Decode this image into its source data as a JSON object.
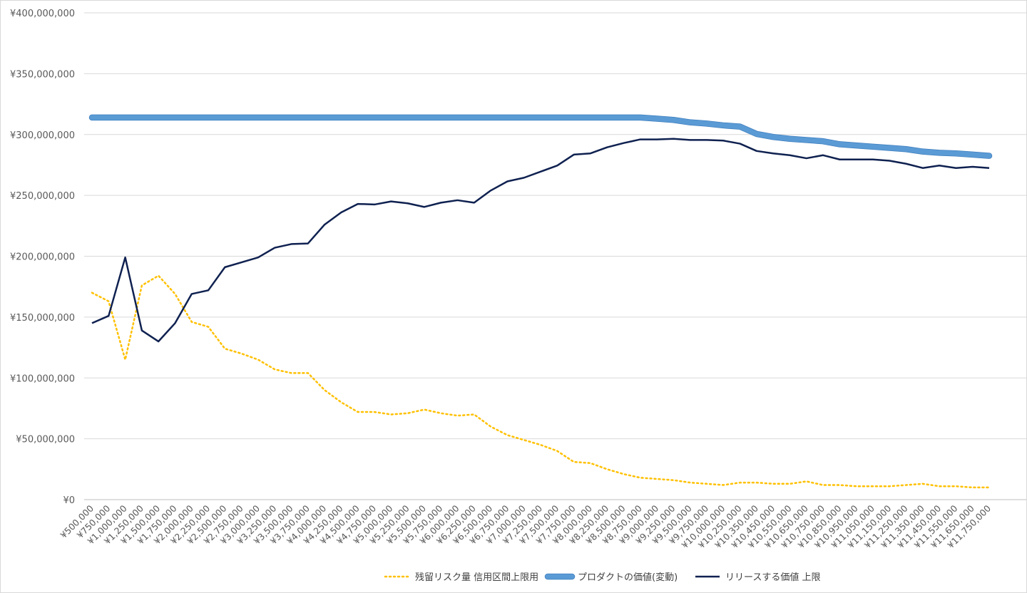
{
  "chart_data": {
    "type": "line",
    "title": "",
    "xlabel": "",
    "ylabel": "",
    "ylim": [
      0,
      400000000
    ],
    "yticks": [
      0,
      50000000,
      100000000,
      150000000,
      200000000,
      250000000,
      300000000,
      350000000,
      400000000
    ],
    "ytick_labels": [
      "¥0",
      "¥50,000,000",
      "¥100,000,000",
      "¥150,000,000",
      "¥200,000,000",
      "¥250,000,000",
      "¥300,000,000",
      "¥350,000,000",
      "¥400,000,000"
    ],
    "grid": true,
    "legend_position": "bottom",
    "categories": [
      "¥500,000",
      "¥750,000",
      "¥1,000,000",
      "¥1,250,000",
      "¥1,500,000",
      "¥1,750,000",
      "¥2,000,000",
      "¥2,250,000",
      "¥2,500,000",
      "¥2,750,000",
      "¥3,000,000",
      "¥3,250,000",
      "¥3,500,000",
      "¥3,750,000",
      "¥4,000,000",
      "¥4,250,000",
      "¥4,500,000",
      "¥4,750,000",
      "¥5,000,000",
      "¥5,250,000",
      "¥5,500,000",
      "¥5,750,000",
      "¥6,000,000",
      "¥6,250,000",
      "¥6,500,000",
      "¥6,750,000",
      "¥7,000,000",
      "¥7,250,000",
      "¥7,500,000",
      "¥7,750,000",
      "¥8,000,000",
      "¥8,250,000",
      "¥8,500,000",
      "¥8,750,000",
      "¥9,000,000",
      "¥9,250,000",
      "¥9,500,000",
      "¥9,750,000",
      "¥10,000,000",
      "¥10,250,000",
      "¥10,350,000",
      "¥10,450,000",
      "¥10,550,000",
      "¥10,650,000",
      "¥10,750,000",
      "¥10,850,000",
      "¥10,950,000",
      "¥11,050,000",
      "¥11,150,000",
      "¥11,250,000",
      "¥11,350,000",
      "¥11,450,000",
      "¥11,550,000",
      "¥11,650,000",
      "¥11,750,000"
    ],
    "series": [
      {
        "name": "残留リスク量 信用区間上限用",
        "color": "#ffc000",
        "style": "dotted",
        "values": [
          170000000,
          163000000,
          115000000,
          176000000,
          184000000,
          169000000,
          146000000,
          142000000,
          124000000,
          120000000,
          115000000,
          107000000,
          104000000,
          104000000,
          90000000,
          80000000,
          72000000,
          72000000,
          70000000,
          71000000,
          74000000,
          71000000,
          69000000,
          70000000,
          60000000,
          53000000,
          49000000,
          45000000,
          40000000,
          31000000,
          30000000,
          25000000,
          21000000,
          18000000,
          17000000,
          16000000,
          14000000,
          13000000,
          12000000,
          14000000,
          14000000,
          13000000,
          13000000,
          15000000,
          12000000,
          12000000,
          11000000,
          11000000,
          11000000,
          12000000,
          13000000,
          11000000,
          11000000,
          10000000,
          10000000
        ]
      },
      {
        "name": "プロダクトの価値(変動)",
        "color": "#5b9bd5",
        "style": "thick",
        "values": [
          314000000,
          314000000,
          314000000,
          314000000,
          314000000,
          314000000,
          314000000,
          314000000,
          314000000,
          314000000,
          314000000,
          314000000,
          314000000,
          314000000,
          314000000,
          314000000,
          314000000,
          314000000,
          314000000,
          314000000,
          314000000,
          314000000,
          314000000,
          314000000,
          314000000,
          314000000,
          314000000,
          314000000,
          314000000,
          314000000,
          314000000,
          314000000,
          314000000,
          314000000,
          313000000,
          312000000,
          310000000,
          309000000,
          307500000,
          306500000,
          300500000,
          298000000,
          296500000,
          295500000,
          294500000,
          292000000,
          291000000,
          290000000,
          289000000,
          288000000,
          286000000,
          285000000,
          284500000,
          283500000,
          282500000
        ]
      },
      {
        "name": "リリースする価値 上限",
        "color": "#0f2150",
        "style": "solid",
        "values": [
          145000000,
          151000000,
          199000000,
          139000000,
          130000000,
          145000000,
          169000000,
          172000000,
          191000000,
          195000000,
          199000000,
          207000000,
          210000000,
          210500000,
          226000000,
          236000000,
          243000000,
          242500000,
          245000000,
          243500000,
          240500000,
          244000000,
          246000000,
          244000000,
          254000000,
          261500000,
          264500000,
          269500000,
          274500000,
          283500000,
          284500000,
          289500000,
          293000000,
          296000000,
          296000000,
          296500000,
          295500000,
          295500000,
          295000000,
          292500000,
          286500000,
          284500000,
          283000000,
          280500000,
          283000000,
          279500000,
          279500000,
          279500000,
          278500000,
          276000000,
          272500000,
          274500000,
          272500000,
          273500000,
          272500000
        ]
      }
    ]
  }
}
